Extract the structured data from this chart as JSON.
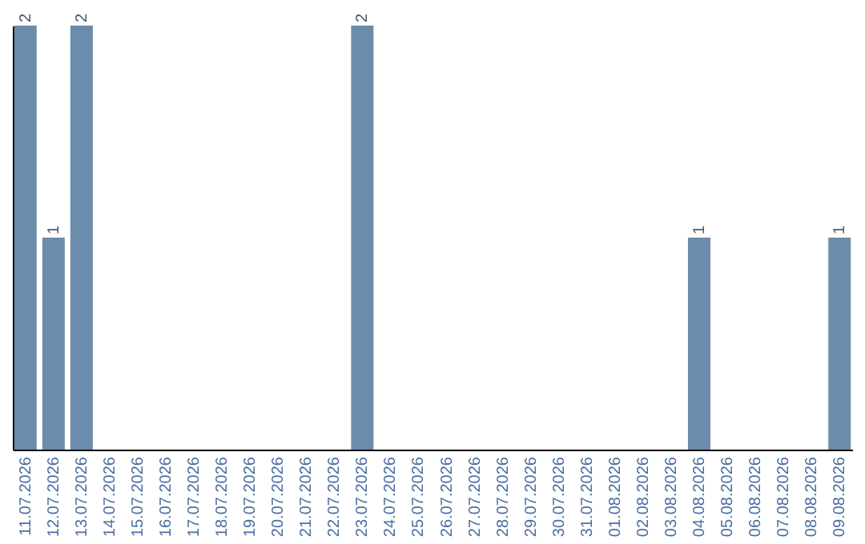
{
  "chart_data": {
    "type": "bar",
    "categories": [
      "11.07.2026",
      "12.07.2026",
      "13.07.2026",
      "14.07.2026",
      "15.07.2026",
      "16.07.2026",
      "17.07.2026",
      "18.07.2026",
      "19.07.2026",
      "20.07.2026",
      "21.07.2026",
      "22.07.2026",
      "23.07.2026",
      "24.07.2026",
      "25.07.2026",
      "26.07.2026",
      "27.07.2026",
      "28.07.2026",
      "29.07.2026",
      "30.07.2026",
      "31.07.2026",
      "01.08.2026",
      "02.08.2026",
      "03.08.2026",
      "04.08.2026",
      "05.08.2026",
      "06.08.2026",
      "07.08.2026",
      "08.08.2026",
      "09.08.2026"
    ],
    "values": [
      2,
      1,
      2,
      0,
      0,
      0,
      0,
      0,
      0,
      0,
      0,
      0,
      2,
      0,
      0,
      0,
      0,
      0,
      0,
      0,
      0,
      0,
      0,
      0,
      1,
      0,
      0,
      0,
      0,
      1
    ],
    "value_labels": [
      "2",
      "1",
      "2",
      null,
      null,
      null,
      null,
      null,
      null,
      null,
      null,
      null,
      "2",
      null,
      null,
      null,
      null,
      null,
      null,
      null,
      null,
      null,
      null,
      null,
      "1",
      null,
      null,
      null,
      null,
      "1"
    ],
    "color": "#6b8cab",
    "grid": false,
    "tick_labels": "x"
  }
}
